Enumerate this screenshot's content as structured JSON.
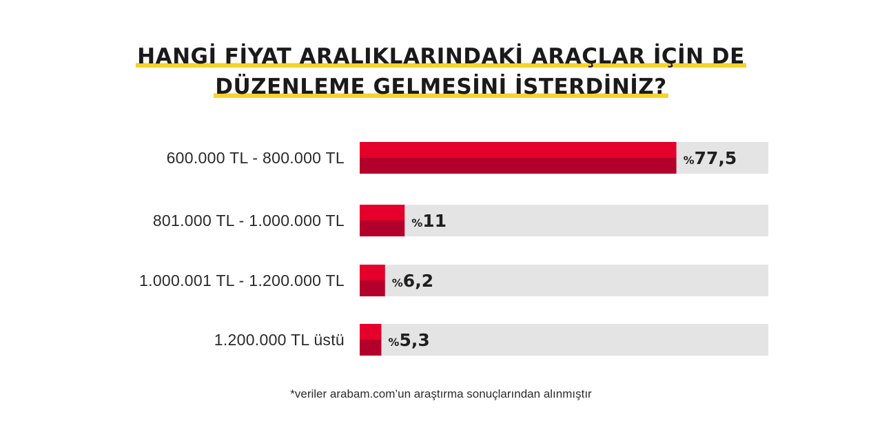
{
  "title": {
    "line1": "HANGİ FİYAT ARALIKLARINDAKİ ARAÇLAR İÇİN DE",
    "line2": "DÜZENLEME GELMESİNİ İSTERDİNİZ?"
  },
  "footnote": "*veriler arabam.com’un araştırma sonuçlarından alınmıştır",
  "colors": {
    "bar_top": "#e4002b",
    "bar_bottom": "#b3002a",
    "track": "#e4e4e4",
    "title_highlight": "#f7d22b"
  },
  "chart_data": {
    "type": "bar",
    "orientation": "horizontal",
    "categories": [
      "600.000 TL - 800.000 TL",
      "801.000 TL - 1.000.000 TL",
      "1.000.001 TL - 1.200.000 TL",
      "1.200.000 TL üstü"
    ],
    "values": [
      77.5,
      11,
      6.2,
      5.3
    ],
    "value_labels": [
      "77,5",
      "11",
      "6,2",
      "5,3"
    ],
    "value_prefix": "%",
    "xlim": [
      0,
      100
    ],
    "grid": false,
    "legend": "none"
  }
}
